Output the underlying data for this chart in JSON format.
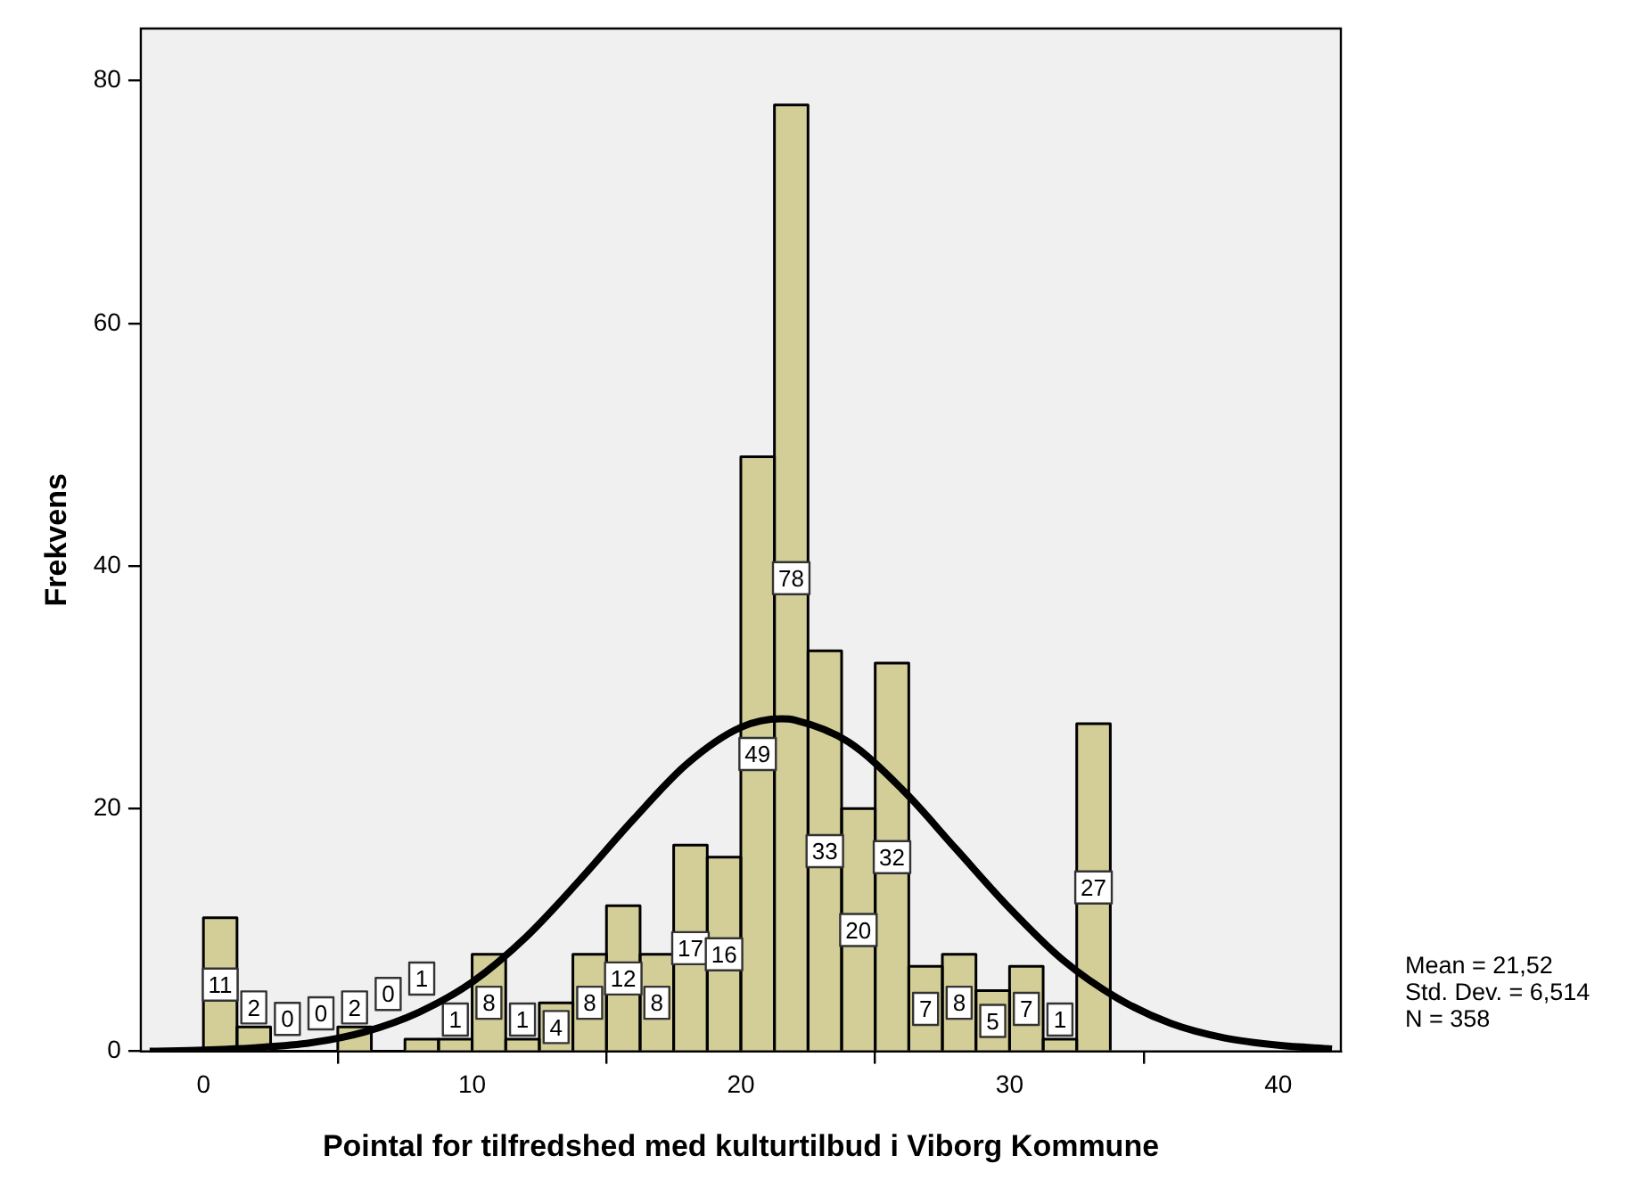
{
  "chart_data": {
    "type": "histogram",
    "xlabel": "Pointal for tilfredshed med kulturtilbud i Viborg Kommune",
    "ylabel": "Frekvens",
    "series": [
      {
        "type": "histogram",
        "color": "#d3ce97",
        "bins": [
          0,
          1.25,
          2.5,
          3.75,
          5,
          6.25,
          7.5,
          8.75,
          10,
          11.25,
          12.5,
          13.75,
          15,
          16.25,
          17.5,
          18.75,
          20,
          21.25,
          22.5,
          23.75,
          25,
          26.25,
          27.5,
          28.75,
          30,
          31.25,
          32.5,
          33.75
        ],
        "values": [
          11,
          2,
          0,
          0,
          2,
          0,
          1,
          1,
          8,
          1,
          4,
          8,
          12,
          8,
          17,
          16,
          49,
          78,
          33,
          20,
          32,
          7,
          8,
          5,
          7,
          1,
          27
        ],
        "value_labels": [
          "11",
          "2",
          "0",
          "0",
          "2",
          "0",
          "1",
          "1",
          "8",
          "1",
          "4",
          "8",
          "12",
          "8",
          "17",
          "16",
          "49",
          "78",
          "33",
          "20",
          "32",
          "7",
          "8",
          "5",
          "7",
          "1",
          "27"
        ]
      },
      {
        "type": "line",
        "color": "#000000",
        "x": [
          -2,
          0,
          2,
          4,
          6,
          8,
          10,
          12,
          14,
          16,
          18,
          20,
          21.52,
          22,
          24,
          26,
          28,
          30,
          32,
          34,
          36,
          38,
          40,
          42
        ],
        "values": [
          0,
          0.1,
          0.3,
          0.7,
          1.6,
          3.2,
          5.7,
          9.4,
          14.1,
          19.1,
          23.7,
          26.7,
          27.4,
          27.3,
          25.5,
          21.6,
          16.7,
          11.8,
          7.5,
          4.4,
          2.3,
          1.1,
          0.5,
          0.2
        ]
      }
    ],
    "xlim": [
      -2.33,
      42.33
    ],
    "xticks": [
      0,
      10,
      20,
      30,
      40
    ],
    "ylim": [
      0,
      84.3
    ],
    "yticks": [
      0,
      20,
      40,
      60,
      80
    ],
    "grid": false,
    "legend": false,
    "annotations": [
      "Mean = 21,52",
      "Std. Dev. = 6,514",
      "N = 358"
    ]
  }
}
